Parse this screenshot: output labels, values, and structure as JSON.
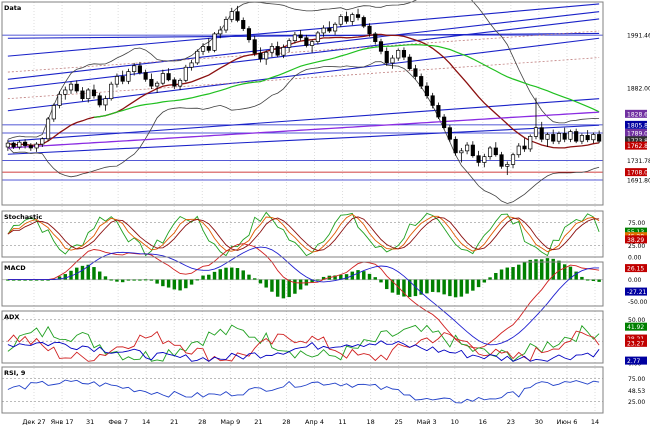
{
  "chart_data": {
    "type": "candlestick",
    "panels": [
      {
        "id": "price",
        "title": "Data",
        "ylim": [
          1640,
          2060
        ],
        "y_labels": [
          "1991.46",
          "1882.00",
          "1828.62",
          "1805.80",
          "1789.00",
          "1773.86",
          "1762.86",
          "1731.78",
          "1708.00",
          "1691.80"
        ],
        "marker_labels": [
          "1828.62",
          "1805.80",
          "1789.00",
          "1773.86",
          "1762.86",
          "1708.00"
        ],
        "x_labels": [
          "Дек 27",
          "Янв 17",
          "31",
          "Фев 7",
          "14",
          "21",
          "28",
          "Мар 9",
          "21",
          "28",
          "Апр 4",
          "11",
          "18",
          "25",
          "Май 3",
          "10",
          "16",
          "23",
          "30",
          "Июн 6",
          "14"
        ],
        "candles": [
          [
            1760,
            1775,
            1752,
            1768
          ],
          [
            1768,
            1771,
            1756,
            1760
          ],
          [
            1760,
            1774,
            1755,
            1770
          ],
          [
            1770,
            1776,
            1757,
            1763
          ],
          [
            1763,
            1768,
            1752,
            1758
          ],
          [
            1758,
            1770,
            1750,
            1766
          ],
          [
            1766,
            1780,
            1760,
            1777
          ],
          [
            1777,
            1822,
            1772,
            1818
          ],
          [
            1818,
            1850,
            1812,
            1846
          ],
          [
            1846,
            1875,
            1840,
            1869
          ],
          [
            1869,
            1885,
            1858,
            1878
          ],
          [
            1878,
            1895,
            1870,
            1890
          ],
          [
            1890,
            1898,
            1872,
            1876
          ],
          [
            1876,
            1884,
            1855,
            1860
          ],
          [
            1860,
            1882,
            1852,
            1878
          ],
          [
            1878,
            1889,
            1860,
            1866
          ],
          [
            1866,
            1872,
            1842,
            1847
          ],
          [
            1847,
            1866,
            1835,
            1860
          ],
          [
            1860,
            1895,
            1856,
            1890
          ],
          [
            1890,
            1912,
            1883,
            1906
          ],
          [
            1906,
            1918,
            1890,
            1896
          ],
          [
            1896,
            1922,
            1890,
            1916
          ],
          [
            1916,
            1934,
            1908,
            1928
          ],
          [
            1928,
            1936,
            1910,
            1914
          ],
          [
            1914,
            1920,
            1895,
            1900
          ],
          [
            1900,
            1912,
            1880,
            1886
          ],
          [
            1886,
            1896,
            1872,
            1892
          ],
          [
            1892,
            1920,
            1888,
            1912
          ],
          [
            1912,
            1923,
            1896,
            1899
          ],
          [
            1899,
            1904,
            1880,
            1886
          ],
          [
            1886,
            1902,
            1878,
            1898
          ],
          [
            1898,
            1930,
            1894,
            1925
          ],
          [
            1925,
            1940,
            1918,
            1934
          ],
          [
            1934,
            1962,
            1930,
            1958
          ],
          [
            1958,
            1975,
            1950,
            1968
          ],
          [
            1968,
            1985,
            1955,
            1960
          ],
          [
            1960,
            1998,
            1956,
            1994
          ],
          [
            1994,
            2010,
            1985,
            2002
          ],
          [
            2002,
            2030,
            1996,
            2024
          ],
          [
            2024,
            2048,
            2018,
            2040
          ],
          [
            2040,
            2052,
            2018,
            2022
          ],
          [
            2022,
            2028,
            2000,
            2005
          ],
          [
            2005,
            2010,
            1976,
            1982
          ],
          [
            1982,
            1990,
            1948,
            1954
          ],
          [
            1954,
            1966,
            1935,
            1942
          ],
          [
            1942,
            1960,
            1930,
            1956
          ],
          [
            1956,
            1975,
            1946,
            1968
          ],
          [
            1968,
            1978,
            1946,
            1950
          ],
          [
            1950,
            1972,
            1944,
            1966
          ],
          [
            1966,
            1985,
            1956,
            1980
          ],
          [
            1980,
            1998,
            1974,
            1992
          ],
          [
            1992,
            2002,
            1980,
            1986
          ],
          [
            1986,
            1992,
            1966,
            1970
          ],
          [
            1970,
            1982,
            1955,
            1978
          ],
          [
            1978,
            2000,
            1972,
            1996
          ],
          [
            1996,
            2012,
            1988,
            2006
          ],
          [
            2006,
            2020,
            1996,
            2000
          ],
          [
            2000,
            2018,
            1992,
            2014
          ],
          [
            2014,
            2035,
            2008,
            2030
          ],
          [
            2030,
            2040,
            2015,
            2020
          ],
          [
            2020,
            2038,
            2012,
            2034
          ],
          [
            2034,
            2046,
            2022,
            2028
          ],
          [
            2028,
            2032,
            2006,
            2010
          ],
          [
            2010,
            2016,
            1988,
            1994
          ],
          [
            1994,
            1998,
            1972,
            1978
          ],
          [
            1978,
            1984,
            1952,
            1958
          ],
          [
            1958,
            1966,
            1928,
            1934
          ],
          [
            1934,
            1950,
            1922,
            1944
          ],
          [
            1944,
            1964,
            1938,
            1960
          ],
          [
            1960,
            1966,
            1940,
            1946
          ],
          [
            1946,
            1952,
            1918,
            1922
          ],
          [
            1922,
            1930,
            1900,
            1906
          ],
          [
            1906,
            1912,
            1880,
            1886
          ],
          [
            1886,
            1894,
            1860,
            1866
          ],
          [
            1866,
            1872,
            1840,
            1846
          ],
          [
            1846,
            1852,
            1818,
            1822
          ],
          [
            1822,
            1828,
            1796,
            1800
          ],
          [
            1800,
            1806,
            1770,
            1776
          ],
          [
            1776,
            1782,
            1742,
            1748
          ],
          [
            1748,
            1758,
            1728,
            1752
          ],
          [
            1752,
            1770,
            1745,
            1764
          ],
          [
            1764,
            1772,
            1738,
            1742
          ],
          [
            1742,
            1752,
            1720,
            1728
          ],
          [
            1728,
            1746,
            1718,
            1740
          ],
          [
            1740,
            1762,
            1734,
            1758
          ],
          [
            1758,
            1770,
            1740,
            1744
          ],
          [
            1744,
            1750,
            1715,
            1720
          ],
          [
            1720,
            1730,
            1702,
            1724
          ],
          [
            1724,
            1748,
            1716,
            1744
          ],
          [
            1744,
            1768,
            1738,
            1762
          ],
          [
            1762,
            1778,
            1750,
            1756
          ],
          [
            1756,
            1786,
            1750,
            1782
          ],
          [
            1782,
            1862,
            1776,
            1800
          ],
          [
            1800,
            1812,
            1770,
            1776
          ],
          [
            1776,
            1790,
            1760,
            1786
          ],
          [
            1786,
            1796,
            1766,
            1772
          ],
          [
            1772,
            1792,
            1766,
            1788
          ],
          [
            1788,
            1800,
            1770,
            1776
          ],
          [
            1776,
            1796,
            1770,
            1792
          ],
          [
            1792,
            1798,
            1768,
            1772
          ],
          [
            1772,
            1788,
            1766,
            1784
          ],
          [
            1784,
            1795,
            1770,
            1775
          ],
          [
            1775,
            1790,
            1768,
            1786
          ],
          [
            1786,
            1794,
            1768,
            1772
          ]
        ]
      },
      {
        "id": "stochastic",
        "title": "Stochastic",
        "ylim": [
          0,
          100
        ],
        "y_labels": [
          "75.00",
          "25.00",
          "0.00"
        ],
        "marker_labels": [
          "55.13",
          "45.28",
          "38.29"
        ]
      },
      {
        "id": "macd",
        "title": "MACD",
        "ylim": [
          -60,
          40
        ],
        "y_labels": [
          "0.00",
          "-50.00"
        ],
        "marker_labels": [
          "26.15",
          "-27.21"
        ]
      },
      {
        "id": "adx",
        "title": "ADX",
        "ylim": [
          0,
          60
        ],
        "y_labels": [
          "50.00",
          "25.00",
          "0.00"
        ],
        "marker_labels": [
          "41.92",
          "28.21",
          "23.27",
          "2.77"
        ]
      },
      {
        "id": "rsi",
        "title": "RSI, 9",
        "ylim": [
          0,
          100
        ],
        "y_labels": [
          "75.00",
          "48.53",
          "25.00"
        ]
      }
    ]
  },
  "colors": {
    "candle_up": "#ffffff",
    "candle_down": "#000000",
    "trend_lines": "#1a22c8",
    "ma_short": "#8b1010",
    "ma_long": "#20c020",
    "ma_longest": "#8a2be2",
    "bollinger": "#404040",
    "stoch_k": "#20a020",
    "stoch_d": "#e05a00",
    "stoch_slow": "#8b1010",
    "macd_line": "#d02020",
    "macd_signal": "#2020d0",
    "macd_hist": "#008000",
    "adx_line": "#0000c0",
    "dmi_plus": "#20a020",
    "dmi_minus": "#d02020",
    "rsi_line": "#2040c8",
    "label_blue": "#0000a0",
    "label_red": "#c00000",
    "label_green": "#008000",
    "label_orange": "#e07000",
    "label_purple": "#7030a0",
    "label_dark": "#303030"
  }
}
